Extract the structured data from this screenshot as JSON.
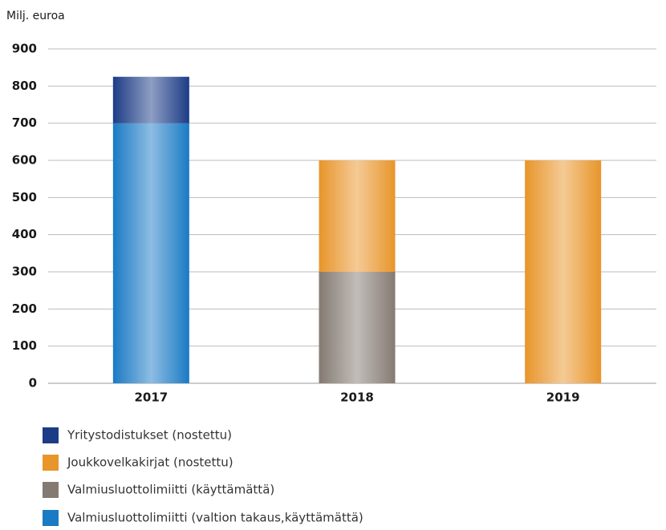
{
  "chart_data": {
    "type": "stacked_bar",
    "y_axis_label": "Milj. euroa",
    "categories": [
      "2017",
      "2018",
      "2019"
    ],
    "series": [
      {
        "name": "Valmiusluottolimiitti (valtion takaus,käyttämättä)",
        "color": "#1a7ac4",
        "values": [
          700,
          0,
          0
        ]
      },
      {
        "name": "Valmiusluottolimiitti (käyttämättä)",
        "color": "#847a72",
        "values": [
          0,
          300,
          0
        ]
      },
      {
        "name": "Joukkovelkakirjat (nostettu)",
        "color": "#e8952a",
        "values": [
          0,
          300,
          600
        ]
      },
      {
        "name": "Yritystodistukset (nostettu)",
        "color": "#1d3c86",
        "values": [
          125,
          0,
          0
        ]
      }
    ],
    "legend_order": [
      3,
      2,
      1,
      0
    ],
    "ylim": [
      0,
      900
    ],
    "yticks": [
      0,
      100,
      200,
      300,
      400,
      500,
      600,
      700,
      800,
      900
    ],
    "grid": true
  }
}
